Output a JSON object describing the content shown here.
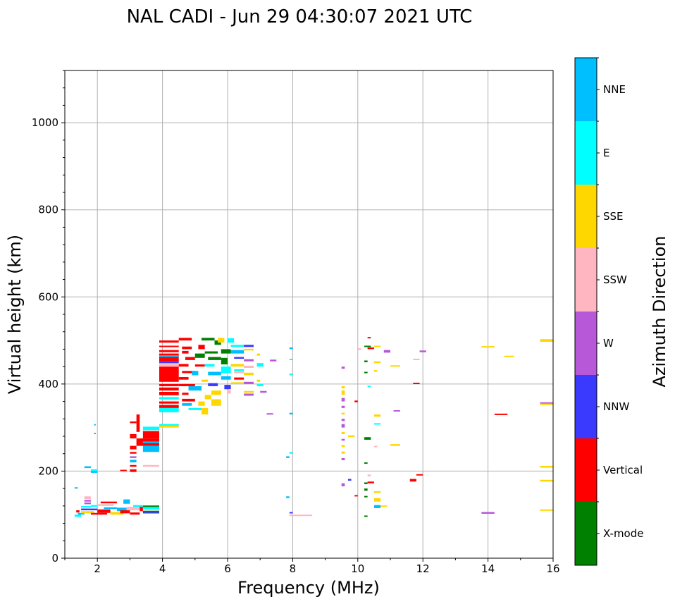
{
  "chart_data": {
    "type": "scatter",
    "title": "NAL CADI - Jun 29 04:30:07 2021 UTC",
    "xlabel": "Frequency (MHz)",
    "ylabel": "Virtual height (km)",
    "xlim": [
      1,
      16
    ],
    "ylim": [
      0,
      1120
    ],
    "xticks": [
      2,
      4,
      6,
      8,
      10,
      12,
      14,
      16
    ],
    "yticks": [
      0,
      200,
      400,
      600,
      800,
      1000
    ],
    "grid": true,
    "colorbar": {
      "label": "Azimuth Direction",
      "categories": [
        {
          "name": "X-mode",
          "color": "#008000"
        },
        {
          "name": "Vertical",
          "color": "#ff0000"
        },
        {
          "name": "NNW",
          "color": "#3a3aff"
        },
        {
          "name": "W",
          "color": "#b658d8"
        },
        {
          "name": "SSW",
          "color": "#ffb6c1"
        },
        {
          "name": "SSE",
          "color": "#ffd700"
        },
        {
          "name": "E",
          "color": "#00ffff"
        },
        {
          "name": "NNE",
          "color": "#00bfff"
        }
      ]
    },
    "segments": [
      [
        1.3,
        1.5,
        95,
        100,
        6
      ],
      [
        1.35,
        1.45,
        105,
        110,
        1
      ],
      [
        1.4,
        1.6,
        100,
        104,
        7
      ],
      [
        1.5,
        1.9,
        103,
        108,
        5
      ],
      [
        1.5,
        2.0,
        110,
        114,
        2
      ],
      [
        1.5,
        1.8,
        116,
        120,
        6
      ],
      [
        1.6,
        1.8,
        124,
        128,
        3
      ],
      [
        1.6,
        1.8,
        136,
        142,
        4
      ],
      [
        1.6,
        1.8,
        130,
        134,
        3
      ],
      [
        1.8,
        2.3,
        100,
        104,
        1
      ],
      [
        1.8,
        2.0,
        118,
        122,
        6
      ],
      [
        2.0,
        2.4,
        104,
        112,
        1
      ],
      [
        2.2,
        2.6,
        113,
        117,
        7
      ],
      [
        2.0,
        2.5,
        120,
        124,
        4
      ],
      [
        2.1,
        2.6,
        126,
        130,
        1
      ],
      [
        2.4,
        2.8,
        100,
        106,
        5
      ],
      [
        2.6,
        2.9,
        108,
        116,
        7
      ],
      [
        2.7,
        3.0,
        103,
        110,
        1
      ],
      [
        2.9,
        3.3,
        110,
        118,
        4
      ],
      [
        3.0,
        3.3,
        100,
        105,
        1
      ],
      [
        3.1,
        3.4,
        118,
        122,
        6
      ],
      [
        3.3,
        3.4,
        108,
        118,
        1
      ],
      [
        3.4,
        3.9,
        112,
        118,
        6
      ],
      [
        3.4,
        3.9,
        118,
        121,
        0
      ],
      [
        3.4,
        3.9,
        103,
        106,
        2
      ],
      [
        3.4,
        3.9,
        106,
        109,
        0
      ],
      [
        2.8,
        3.0,
        125,
        135,
        7
      ],
      [
        1.3,
        1.4,
        160,
        163,
        7
      ],
      [
        1.6,
        1.8,
        207,
        211,
        7
      ],
      [
        1.8,
        2.0,
        200,
        204,
        6
      ],
      [
        1.8,
        2.0,
        196,
        200,
        7
      ],
      [
        1.9,
        1.95,
        305,
        308,
        7
      ],
      [
        1.9,
        1.95,
        285,
        288,
        3
      ],
      [
        2.7,
        2.9,
        200,
        203,
        1
      ],
      [
        3.0,
        3.2,
        198,
        204,
        1
      ],
      [
        3.0,
        3.2,
        210,
        214,
        1
      ],
      [
        3.0,
        3.2,
        220,
        226,
        7
      ],
      [
        3.0,
        3.2,
        230,
        234,
        3
      ],
      [
        3.0,
        3.2,
        240,
        244,
        1
      ],
      [
        3.0,
        3.2,
        250,
        258,
        1
      ],
      [
        3.0,
        3.2,
        275,
        285,
        1
      ],
      [
        3.0,
        3.2,
        310,
        314,
        1
      ],
      [
        3.2,
        3.3,
        290,
        330,
        1
      ],
      [
        3.2,
        3.9,
        258,
        275,
        1
      ],
      [
        3.4,
        3.9,
        275,
        292,
        1
      ],
      [
        3.4,
        3.9,
        294,
        302,
        6
      ],
      [
        3.4,
        3.9,
        244,
        258,
        7
      ],
      [
        3.4,
        3.9,
        264,
        268,
        7
      ],
      [
        3.4,
        3.9,
        210,
        214,
        4
      ],
      [
        3.9,
        4.5,
        300,
        305,
        5
      ],
      [
        3.9,
        4.5,
        305,
        308,
        6
      ],
      [
        3.9,
        4.5,
        335,
        345,
        6
      ],
      [
        3.9,
        4.5,
        345,
        352,
        1
      ],
      [
        3.9,
        4.5,
        355,
        360,
        1
      ],
      [
        3.9,
        4.5,
        365,
        370,
        6
      ],
      [
        3.9,
        4.5,
        374,
        382,
        1
      ],
      [
        3.9,
        4.5,
        385,
        392,
        1
      ],
      [
        3.9,
        4.5,
        395,
        400,
        1
      ],
      [
        3.9,
        4.5,
        405,
        440,
        1
      ],
      [
        3.9,
        4.5,
        440,
        448,
        4
      ],
      [
        3.9,
        4.5,
        448,
        452,
        2
      ],
      [
        3.9,
        4.5,
        452,
        470,
        1
      ],
      [
        3.9,
        4.5,
        473,
        478,
        1
      ],
      [
        3.9,
        4.5,
        485,
        488,
        1
      ],
      [
        3.9,
        4.5,
        495,
        500,
        1
      ],
      [
        3.9,
        4.5,
        462,
        466,
        7
      ],
      [
        4.5,
        4.9,
        500,
        506,
        1
      ],
      [
        4.6,
        4.9,
        480,
        486,
        1
      ],
      [
        4.6,
        4.8,
        470,
        476,
        1
      ],
      [
        4.7,
        5.0,
        455,
        462,
        1
      ],
      [
        4.5,
        4.8,
        440,
        446,
        1
      ],
      [
        4.6,
        5.0,
        425,
        430,
        1
      ],
      [
        4.5,
        4.8,
        410,
        416,
        1
      ],
      [
        4.5,
        5.0,
        395,
        400,
        1
      ],
      [
        4.6,
        4.8,
        375,
        380,
        1
      ],
      [
        4.6,
        5.0,
        360,
        366,
        1
      ],
      [
        4.6,
        4.9,
        350,
        356,
        7
      ],
      [
        4.8,
        5.2,
        340,
        345,
        6
      ],
      [
        4.8,
        5.2,
        385,
        395,
        7
      ],
      [
        4.9,
        5.1,
        420,
        430,
        7
      ],
      [
        5.0,
        5.3,
        440,
        445,
        1
      ],
      [
        5.0,
        5.3,
        460,
        470,
        0
      ],
      [
        5.1,
        5.3,
        480,
        490,
        1
      ],
      [
        5.2,
        5.6,
        500,
        506,
        0
      ],
      [
        5.2,
        5.4,
        405,
        410,
        5
      ],
      [
        5.1,
        5.3,
        350,
        360,
        5
      ],
      [
        5.2,
        5.4,
        330,
        345,
        5
      ],
      [
        5.3,
        5.5,
        365,
        375,
        5
      ],
      [
        5.3,
        5.7,
        470,
        475,
        0
      ],
      [
        5.4,
        5.8,
        455,
        462,
        0
      ],
      [
        5.3,
        5.6,
        440,
        446,
        6
      ],
      [
        5.4,
        5.8,
        420,
        428,
        7
      ],
      [
        5.4,
        5.7,
        395,
        402,
        2
      ],
      [
        5.5,
        5.8,
        375,
        385,
        5
      ],
      [
        5.5,
        5.8,
        350,
        365,
        5
      ],
      [
        5.6,
        5.8,
        490,
        500,
        0
      ],
      [
        5.7,
        5.9,
        495,
        506,
        5
      ],
      [
        5.8,
        6.1,
        470,
        480,
        0
      ],
      [
        5.8,
        6.0,
        445,
        460,
        0
      ],
      [
        5.8,
        6.1,
        425,
        440,
        6
      ],
      [
        5.8,
        6.1,
        410,
        418,
        7
      ],
      [
        5.9,
        6.1,
        388,
        398,
        2
      ],
      [
        6.0,
        6.1,
        378,
        386,
        4
      ],
      [
        6.0,
        6.2,
        495,
        505,
        6
      ],
      [
        6.1,
        6.5,
        485,
        490,
        6
      ],
      [
        6.1,
        6.5,
        470,
        478,
        7
      ],
      [
        6.2,
        6.5,
        458,
        462,
        2
      ],
      [
        6.1,
        6.5,
        440,
        446,
        5
      ],
      [
        6.2,
        6.5,
        425,
        430,
        4
      ],
      [
        6.2,
        6.5,
        430,
        434,
        6
      ],
      [
        6.2,
        6.5,
        410,
        415,
        1
      ],
      [
        6.1,
        6.5,
        400,
        404,
        5
      ],
      [
        6.5,
        6.8,
        485,
        490,
        2
      ],
      [
        6.5,
        6.8,
        477,
        481,
        5
      ],
      [
        6.5,
        6.8,
        452,
        457,
        3
      ],
      [
        6.5,
        6.8,
        437,
        442,
        4
      ],
      [
        6.5,
        6.8,
        420,
        426,
        5
      ],
      [
        6.5,
        6.8,
        400,
        405,
        3
      ],
      [
        6.5,
        6.8,
        373,
        378,
        3
      ],
      [
        6.5,
        6.8,
        380,
        384,
        5
      ],
      [
        6.9,
        7.1,
        440,
        448,
        6
      ],
      [
        6.9,
        7.1,
        395,
        400,
        6
      ],
      [
        6.9,
        7.0,
        405,
        410,
        5
      ],
      [
        7.0,
        7.2,
        380,
        384,
        3
      ],
      [
        7.2,
        7.4,
        330,
        333,
        3
      ],
      [
        7.3,
        7.5,
        452,
        456,
        3
      ],
      [
        6.9,
        7.0,
        465,
        470,
        5
      ],
      [
        7.9,
        8.0,
        480,
        484,
        7
      ],
      [
        7.9,
        8.0,
        455,
        458,
        6
      ],
      [
        7.9,
        8.0,
        420,
        424,
        6
      ],
      [
        7.9,
        8.0,
        330,
        334,
        7
      ],
      [
        7.9,
        8.0,
        240,
        244,
        6
      ],
      [
        7.8,
        7.9,
        230,
        234,
        7
      ],
      [
        7.8,
        7.9,
        138,
        142,
        7
      ],
      [
        7.9,
        8.6,
        97,
        100,
        4
      ],
      [
        7.9,
        8.0,
        103,
        106,
        2
      ],
      [
        9.5,
        9.6,
        435,
        440,
        3
      ],
      [
        9.5,
        9.6,
        390,
        395,
        5
      ],
      [
        9.5,
        9.6,
        375,
        385,
        5
      ],
      [
        9.5,
        9.6,
        360,
        368,
        3
      ],
      [
        9.5,
        9.6,
        345,
        350,
        3
      ],
      [
        9.5,
        9.6,
        330,
        334,
        5
      ],
      [
        9.5,
        9.6,
        315,
        320,
        3
      ],
      [
        9.5,
        9.6,
        300,
        308,
        3
      ],
      [
        9.5,
        9.6,
        285,
        290,
        5
      ],
      [
        9.5,
        9.6,
        270,
        274,
        3
      ],
      [
        9.5,
        9.6,
        255,
        260,
        5
      ],
      [
        9.5,
        9.6,
        240,
        245,
        5
      ],
      [
        9.5,
        9.6,
        225,
        230,
        3
      ],
      [
        9.5,
        9.6,
        165,
        172,
        3
      ],
      [
        9.7,
        9.8,
        178,
        182,
        2
      ],
      [
        9.7,
        9.9,
        278,
        282,
        5
      ],
      [
        9.9,
        10.0,
        358,
        362,
        1
      ],
      [
        9.9,
        10.0,
        142,
        145,
        1
      ],
      [
        10.0,
        10.1,
        478,
        482,
        4
      ],
      [
        10.2,
        10.4,
        272,
        278,
        0
      ],
      [
        10.2,
        10.3,
        425,
        428,
        0
      ],
      [
        10.2,
        10.3,
        450,
        454,
        0
      ],
      [
        10.2,
        10.4,
        485,
        488,
        0
      ],
      [
        10.3,
        10.4,
        505,
        508,
        1
      ],
      [
        10.3,
        10.5,
        480,
        484,
        1
      ],
      [
        10.3,
        10.4,
        393,
        396,
        6
      ],
      [
        10.2,
        10.3,
        217,
        220,
        0
      ],
      [
        10.2,
        10.3,
        170,
        174,
        0
      ],
      [
        10.2,
        10.3,
        155,
        160,
        0
      ],
      [
        10.2,
        10.3,
        140,
        143,
        0
      ],
      [
        10.2,
        10.3,
        95,
        98,
        0
      ],
      [
        10.3,
        10.5,
        172,
        176,
        1
      ],
      [
        10.3,
        10.4,
        188,
        192,
        4
      ],
      [
        10.5,
        10.6,
        255,
        258,
        4
      ],
      [
        10.5,
        10.7,
        308,
        310,
        6
      ],
      [
        10.5,
        10.7,
        325,
        330,
        5
      ],
      [
        10.5,
        10.7,
        150,
        154,
        5
      ],
      [
        10.5,
        10.7,
        130,
        138,
        5
      ],
      [
        10.5,
        10.7,
        115,
        122,
        7
      ],
      [
        10.5,
        10.6,
        428,
        432,
        5
      ],
      [
        10.5,
        10.7,
        448,
        452,
        5
      ],
      [
        10.5,
        10.7,
        485,
        488,
        5
      ],
      [
        10.7,
        10.9,
        118,
        121,
        5
      ],
      [
        10.8,
        11.0,
        472,
        478,
        3
      ],
      [
        11.0,
        11.3,
        440,
        443,
        5
      ],
      [
        11.0,
        11.3,
        258,
        262,
        5
      ],
      [
        11.1,
        11.3,
        337,
        340,
        3
      ],
      [
        11.7,
        11.9,
        455,
        458,
        4
      ],
      [
        11.7,
        11.9,
        400,
        403,
        1
      ],
      [
        11.6,
        11.8,
        176,
        182,
        1
      ],
      [
        11.8,
        12.0,
        190,
        193,
        1
      ],
      [
        11.9,
        12.1,
        473,
        477,
        3
      ],
      [
        13.8,
        14.2,
        484,
        487,
        5
      ],
      [
        13.8,
        14.2,
        102,
        106,
        3
      ],
      [
        14.2,
        14.6,
        330,
        332,
        1
      ],
      [
        14.5,
        14.8,
        462,
        465,
        5
      ],
      [
        15.6,
        16,
        497,
        503,
        5
      ],
      [
        15.6,
        16,
        355,
        358,
        3
      ],
      [
        15.6,
        16,
        352,
        355,
        5
      ],
      [
        15.6,
        16,
        208,
        212,
        5
      ],
      [
        15.6,
        16,
        176,
        180,
        5
      ],
      [
        15.6,
        16,
        109,
        112,
        5
      ]
    ]
  }
}
